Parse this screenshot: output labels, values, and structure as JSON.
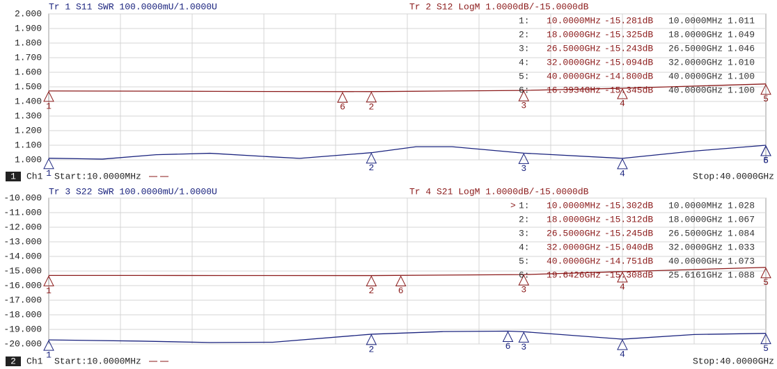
{
  "chart_data": [
    {
      "type": "line",
      "channel": "1",
      "channel_label": "Ch1",
      "start": "Start:10.0000MHz",
      "stop": "Stop:40.0000GHz",
      "xlim": [
        0.01,
        40
      ],
      "ylim": [
        1,
        2
      ],
      "yticks": [
        {
          "value": 2,
          "label": "2.000"
        },
        {
          "value": 1.9,
          "label": "1.900"
        },
        {
          "value": 1.8,
          "label": "1.800"
        },
        {
          "value": 1.7,
          "label": "1.700"
        },
        {
          "value": 1.6,
          "label": "1.600"
        },
        {
          "value": 1.5,
          "label": "1.500"
        },
        {
          "value": 1.4,
          "label": "1.400"
        },
        {
          "value": 1.3,
          "label": "1.300"
        },
        {
          "value": 1.2,
          "label": "1.200"
        },
        {
          "value": 1.1,
          "label": "1.100"
        },
        {
          "value": 1,
          "label": "1.000"
        }
      ],
      "y2lim": [
        -20,
        -10
      ],
      "grid": true,
      "series": [
        {
          "name": "Tr 1  S11 SWR 100.0000mU/1.0000U",
          "color": "#1a237e",
          "x": [
            0.01,
            3,
            6,
            9,
            12.5,
            14,
            18,
            20.5,
            22.5,
            26.5,
            32,
            36,
            40
          ],
          "values": [
            1.011,
            1.005,
            1.035,
            1.045,
            1.02,
            1.01,
            1.049,
            1.09,
            1.09,
            1.046,
            1.01,
            1.06,
            1.1
          ],
          "markers": {
            "ids": [
              "1",
              "2",
              "3",
              "4",
              "5",
              "6"
            ],
            "labels": [
              "1:",
              "2:",
              "3:",
              "4:",
              "5:",
              "6:"
            ],
            "x": [
              0.01,
              18,
              26.5,
              32,
              40,
              40
            ],
            "x_labels": [
              "10.0000MHz",
              "18.0000GHz",
              "26.5000GHz",
              "32.0000GHz",
              "40.0000GHz",
              "40.0000GHz"
            ],
            "values": [
              1.011,
              1.049,
              1.046,
              1.01,
              1.1,
              1.1
            ],
            "value_labels": [
              "1.011",
              "1.049",
              "1.046",
              "1.010",
              "1.100",
              "1.100"
            ]
          }
        },
        {
          "name": "Tr 2  S12 LogM 1.0000dB/-15.0000dB",
          "color": "#8b1a1a",
          "axis": "y2",
          "x": [
            0.01,
            5,
            10,
            18,
            26.5,
            32,
            40
          ],
          "values": [
            -15.281,
            -15.29,
            -15.31,
            -15.325,
            -15.243,
            -15.094,
            -14.8
          ],
          "markers": {
            "ids": [
              "1",
              "2",
              "3",
              "4",
              "5",
              "6"
            ],
            "labels": [
              "1:",
              "2:",
              "3:",
              "4:",
              "5:",
              "6:"
            ],
            "x": [
              0.01,
              18,
              26.5,
              32,
              40,
              16.3934
            ],
            "x_labels": [
              "10.0000MHz",
              "18.0000GHz",
              "26.5000GHz",
              "32.0000GHz",
              "40.0000GHz",
              "16.3934GHz"
            ],
            "values": [
              -15.281,
              -15.325,
              -15.243,
              -15.094,
              -14.8,
              -15.345
            ],
            "value_labels": [
              "-15.281dB",
              "-15.325dB",
              "-15.243dB",
              "-15.094dB",
              "-14.800dB",
              "-15.345dB"
            ]
          }
        }
      ]
    },
    {
      "type": "line",
      "channel": "2",
      "channel_label": "Ch1",
      "start": "Start:10.0000MHz",
      "stop": "Stop:40.0000GHz",
      "active_marker": ">",
      "xlim": [
        0.01,
        40
      ],
      "ylim": [
        -20,
        -10
      ],
      "yticks": [
        {
          "value": -10,
          "label": "-10.000"
        },
        {
          "value": -11,
          "label": "-11.000"
        },
        {
          "value": -12,
          "label": "-12.000"
        },
        {
          "value": -13,
          "label": "-13.000"
        },
        {
          "value": -14,
          "label": "-14.000"
        },
        {
          "value": -15,
          "label": "-15.000"
        },
        {
          "value": -16,
          "label": "-16.000"
        },
        {
          "value": -17,
          "label": "-17.000"
        },
        {
          "value": -18,
          "label": "-18.000"
        },
        {
          "value": -19,
          "label": "-19.000"
        },
        {
          "value": -20,
          "label": "-20.000"
        }
      ],
      "y2lim": [
        1,
        2
      ],
      "grid": true,
      "series": [
        {
          "name": "Tr 3  S22 SWR 100.0000mU/1.0000U",
          "color": "#1a237e",
          "axis": "y2",
          "x": [
            0.01,
            5,
            9,
            12.5,
            18,
            22,
            25.6161,
            26.5,
            32,
            36,
            40
          ],
          "values": [
            1.028,
            1.02,
            1.01,
            1.012,
            1.067,
            1.085,
            1.088,
            1.084,
            1.033,
            1.065,
            1.073
          ],
          "markers": {
            "ids": [
              "1",
              "2",
              "3",
              "4",
              "5",
              "6"
            ],
            "labels": [
              "1:",
              "2:",
              "3:",
              "4:",
              "5:",
              "6:"
            ],
            "x": [
              0.01,
              18,
              26.5,
              32,
              40,
              25.6161
            ],
            "x_labels": [
              "10.0000MHz",
              "18.0000GHz",
              "26.5000GHz",
              "32.0000GHz",
              "40.0000GHz",
              "25.6161GHz"
            ],
            "values": [
              1.028,
              1.067,
              1.084,
              1.033,
              1.073,
              1.088
            ],
            "value_labels": [
              "1.028",
              "1.067",
              "1.084",
              "1.033",
              "1.073",
              "1.088"
            ]
          }
        },
        {
          "name": "Tr 4  S21 LogM 1.0000dB/-15.0000dB",
          "color": "#8b1a1a",
          "x": [
            0.01,
            5,
            10,
            18,
            26.5,
            32,
            40
          ],
          "values": [
            -15.302,
            -15.305,
            -15.31,
            -15.312,
            -15.245,
            -15.04,
            -14.751
          ],
          "markers": {
            "ids": [
              "1",
              "2",
              "3",
              "4",
              "5",
              "6"
            ],
            "labels": [
              "1:",
              "2:",
              "3:",
              "4:",
              "5:",
              "6:"
            ],
            "x": [
              0.01,
              18,
              26.5,
              32,
              40,
              19.6426
            ],
            "x_labels": [
              "10.0000MHz",
              "18.0000GHz",
              "26.5000GHz",
              "32.0000GHz",
              "40.0000GHz",
              "19.6426GHz"
            ],
            "values": [
              -15.302,
              -15.312,
              -15.245,
              -15.04,
              -14.751,
              -15.308
            ],
            "value_labels": [
              "-15.302dB",
              "-15.312dB",
              "-15.245dB",
              "-15.040dB",
              "-14.751dB",
              "-15.308dB"
            ]
          }
        }
      ]
    }
  ]
}
